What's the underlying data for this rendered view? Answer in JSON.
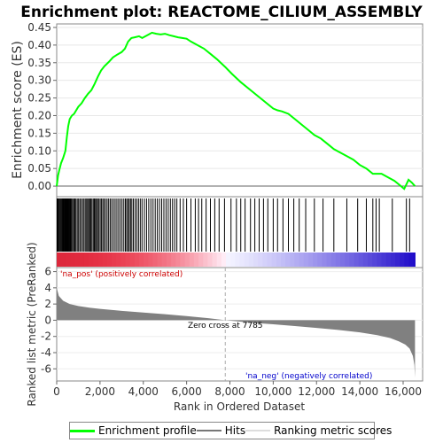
{
  "chart_data": {
    "type": "line",
    "title": "Enrichment plot: REACTOME_CILIUM_ASSEMBLY",
    "es_panel": {
      "ylabel": "Enrichment score (ES)",
      "ylim": [
        -0.03,
        0.46
      ],
      "yticks": [
        "0.00",
        "0.05",
        "0.10",
        "0.15",
        "0.20",
        "0.25",
        "0.30",
        "0.35",
        "0.40",
        "0.45"
      ],
      "series_color": "#00ff00",
      "points": [
        [
          0,
          0.0
        ],
        [
          60,
          0.03
        ],
        [
          120,
          0.045
        ],
        [
          200,
          0.065
        ],
        [
          300,
          0.08
        ],
        [
          400,
          0.1
        ],
        [
          470,
          0.14
        ],
        [
          530,
          0.17
        ],
        [
          600,
          0.19
        ],
        [
          700,
          0.2
        ],
        [
          800,
          0.205
        ],
        [
          900,
          0.215
        ],
        [
          1000,
          0.225
        ],
        [
          1150,
          0.235
        ],
        [
          1300,
          0.25
        ],
        [
          1450,
          0.262
        ],
        [
          1600,
          0.272
        ],
        [
          1750,
          0.29
        ],
        [
          1900,
          0.31
        ],
        [
          2050,
          0.328
        ],
        [
          2200,
          0.34
        ],
        [
          2400,
          0.352
        ],
        [
          2600,
          0.365
        ],
        [
          2800,
          0.373
        ],
        [
          3000,
          0.38
        ],
        [
          3150,
          0.39
        ],
        [
          3300,
          0.41
        ],
        [
          3450,
          0.42
        ],
        [
          3600,
          0.422
        ],
        [
          3800,
          0.425
        ],
        [
          3950,
          0.42
        ],
        [
          4100,
          0.425
        ],
        [
          4250,
          0.43
        ],
        [
          4400,
          0.435
        ],
        [
          4600,
          0.432
        ],
        [
          4800,
          0.43
        ],
        [
          5000,
          0.432
        ],
        [
          5200,
          0.428
        ],
        [
          5400,
          0.425
        ],
        [
          5600,
          0.422
        ],
        [
          5800,
          0.42
        ],
        [
          6000,
          0.418
        ],
        [
          6200,
          0.41
        ],
        [
          6500,
          0.4
        ],
        [
          6800,
          0.39
        ],
        [
          7100,
          0.375
        ],
        [
          7400,
          0.36
        ],
        [
          7785,
          0.338
        ],
        [
          8100,
          0.318
        ],
        [
          8500,
          0.295
        ],
        [
          9000,
          0.27
        ],
        [
          9500,
          0.245
        ],
        [
          10000,
          0.22
        ],
        [
          10200,
          0.215
        ],
        [
          10400,
          0.212
        ],
        [
          10700,
          0.205
        ],
        [
          11000,
          0.19
        ],
        [
          11300,
          0.175
        ],
        [
          11600,
          0.16
        ],
        [
          11900,
          0.145
        ],
        [
          12200,
          0.135
        ],
        [
          12500,
          0.12
        ],
        [
          12800,
          0.105
        ],
        [
          13100,
          0.095
        ],
        [
          13400,
          0.085
        ],
        [
          13700,
          0.075
        ],
        [
          14000,
          0.06
        ],
        [
          14300,
          0.05
        ],
        [
          14600,
          0.035
        ],
        [
          14800,
          0.035
        ],
        [
          15000,
          0.035
        ],
        [
          15300,
          0.025
        ],
        [
          15600,
          0.015
        ],
        [
          15900,
          0.0
        ],
        [
          16050,
          -0.008
        ],
        [
          16150,
          0.005
        ],
        [
          16250,
          0.018
        ],
        [
          16400,
          0.01
        ],
        [
          16550,
          0.0
        ]
      ]
    },
    "hits_panel": {
      "hit_ranks": [
        20,
        40,
        70,
        110,
        150,
        190,
        230,
        260,
        290,
        320,
        350,
        380,
        410,
        440,
        470,
        500,
        530,
        560,
        590,
        620,
        650,
        690,
        740,
        790,
        840,
        890,
        950,
        1010,
        1070,
        1130,
        1200,
        1260,
        1320,
        1380,
        1430,
        1480,
        1530,
        1580,
        1630,
        1690,
        1740,
        1790,
        1840,
        1890,
        1950,
        2010,
        2070,
        2130,
        2190,
        2260,
        2330,
        2400,
        2470,
        2540,
        2620,
        2700,
        2780,
        2860,
        2940,
        3020,
        3100,
        3170,
        3230,
        3290,
        3350,
        3410,
        3470,
        3540,
        3620,
        3700,
        3780,
        3860,
        3940,
        4050,
        4150,
        4250,
        4350,
        4450,
        4550,
        4650,
        4750,
        4850,
        4950,
        5050,
        5150,
        5250,
        5350,
        5450,
        5550,
        5700,
        5850,
        6000,
        6200,
        6400,
        6550,
        6700,
        6900,
        7100,
        7300,
        7500,
        7750,
        8050,
        8300,
        8500,
        8700,
        8950,
        9150,
        9350,
        9550,
        9750,
        10000,
        10200,
        10450,
        10700,
        10950,
        11200,
        11500,
        11900,
        12300,
        12800,
        13400,
        13900,
        14300,
        14600,
        14750,
        14900,
        15500,
        16150,
        16300
      ]
    },
    "rank_panel": {
      "ylabel": "Ranked list metric (PreRanked)",
      "xlabel": "Rank in Ordered Dataset",
      "yticks": [
        "-6",
        "-4",
        "-2",
        "0",
        "2",
        "4",
        "6"
      ],
      "ylim": [
        -7.5,
        6.5
      ],
      "xlim": [
        0,
        16900
      ],
      "xticks": [
        "0",
        "2,000",
        "4,000",
        "6,000",
        "8,000",
        "10,000",
        "12,000",
        "14,000",
        "16,000"
      ],
      "zero_cross": 7785,
      "zero_cross_label": "Zero cross at 7785",
      "pos_label": "'na_pos' (positively correlated)",
      "neg_label": "'na_neg' (negatively correlated)",
      "metric_curve": [
        [
          0,
          4.0
        ],
        [
          100,
          3.0
        ],
        [
          300,
          2.4
        ],
        [
          600,
          2.0
        ],
        [
          1000,
          1.75
        ],
        [
          1500,
          1.55
        ],
        [
          2000,
          1.4
        ],
        [
          3000,
          1.15
        ],
        [
          4000,
          0.95
        ],
        [
          5000,
          0.75
        ],
        [
          6000,
          0.52
        ],
        [
          7000,
          0.25
        ],
        [
          7785,
          0.0
        ],
        [
          9000,
          -0.3
        ],
        [
          10000,
          -0.5
        ],
        [
          11000,
          -0.72
        ],
        [
          12000,
          -0.95
        ],
        [
          13000,
          -1.2
        ],
        [
          14000,
          -1.5
        ],
        [
          14800,
          -1.85
        ],
        [
          15400,
          -2.2
        ],
        [
          15800,
          -2.6
        ],
        [
          16100,
          -3.0
        ],
        [
          16300,
          -3.5
        ],
        [
          16450,
          -4.4
        ],
        [
          16520,
          -5.5
        ],
        [
          16550,
          -7.1
        ]
      ]
    },
    "legend": {
      "enrichment_profile": "Enrichment profile",
      "hits": "Hits",
      "ranking_metric_scores": "Ranking metric scores"
    },
    "colors": {
      "profile": "#00ff00",
      "hits": "#000000",
      "pos_label": "#cc0000",
      "neg_label": "#0000cc",
      "metric_fill": "#808080",
      "zero_cross_line": "#aaaaaa"
    }
  }
}
